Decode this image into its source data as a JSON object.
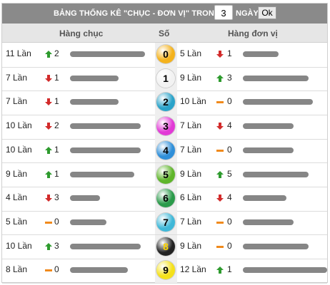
{
  "toolbar": {
    "title": "BẢNG THỐNG KÊ \"CHỤC - ĐƠN VỊ\" TRONG",
    "days_value": "3",
    "days_label": "NGÀY",
    "ok_label": "Ok"
  },
  "header": {
    "chuc": "Hàng chục",
    "so": "Số",
    "donvi": "Hàng đơn vị"
  },
  "colors": {
    "up": "#2e9b2e",
    "down": "#d22b2b",
    "equal": "#f08a1c"
  },
  "rows": [
    {
      "chuc_count": "11 Lần",
      "chuc_trend": "up",
      "chuc_delta": "2",
      "chuc_level": 0.95,
      "digit": "0",
      "ball_color": "#f4b21c",
      "dv_count": "5 Lần",
      "dv_trend": "down",
      "dv_delta": "1",
      "dv_level": 0.42
    },
    {
      "chuc_count": "7 Lần",
      "chuc_trend": "down",
      "chuc_delta": "1",
      "chuc_level": 0.62,
      "digit": "1",
      "ball_color": "#f2f2f2",
      "dv_count": "9 Lần",
      "dv_trend": "up",
      "dv_delta": "3",
      "dv_level": 0.78
    },
    {
      "chuc_count": "7 Lần",
      "chuc_trend": "down",
      "chuc_delta": "1",
      "chuc_level": 0.62,
      "digit": "2",
      "ball_color": "#2aa3c9",
      "dv_count": "10 Lần",
      "dv_trend": "equal",
      "dv_delta": "0",
      "dv_level": 0.83
    },
    {
      "chuc_count": "10 Lần",
      "chuc_trend": "down",
      "chuc_delta": "2",
      "chuc_level": 0.9,
      "digit": "3",
      "ball_color": "#e23ad6",
      "dv_count": "7 Lần",
      "dv_trend": "down",
      "dv_delta": "4",
      "dv_level": 0.6
    },
    {
      "chuc_count": "10 Lần",
      "chuc_trend": "up",
      "chuc_delta": "1",
      "chuc_level": 0.9,
      "digit": "4",
      "ball_color": "#2f8fd9",
      "dv_count": "7 Lần",
      "dv_trend": "equal",
      "dv_delta": "0",
      "dv_level": 0.6
    },
    {
      "chuc_count": "9 Lần",
      "chuc_trend": "up",
      "chuc_delta": "1",
      "chuc_level": 0.82,
      "digit": "5",
      "ball_color": "#5fb52a",
      "dv_count": "9 Lần",
      "dv_trend": "up",
      "dv_delta": "5",
      "dv_level": 0.78
    },
    {
      "chuc_count": "4 Lần",
      "chuc_trend": "down",
      "chuc_delta": "3",
      "chuc_level": 0.38,
      "digit": "6",
      "ball_color": "#2a9a4a",
      "dv_count": "6 Lần",
      "dv_trend": "down",
      "dv_delta": "4",
      "dv_level": 0.52
    },
    {
      "chuc_count": "5 Lần",
      "chuc_trend": "equal",
      "chuc_delta": "0",
      "chuc_level": 0.46,
      "digit": "7",
      "ball_color": "#3fb8d8",
      "dv_count": "7 Lần",
      "dv_trend": "equal",
      "dv_delta": "0",
      "dv_level": 0.6
    },
    {
      "chuc_count": "10 Lần",
      "chuc_trend": "up",
      "chuc_delta": "3",
      "chuc_level": 0.9,
      "digit": "8",
      "ball_color": "#222222",
      "dv_count": "9 Lần",
      "dv_trend": "equal",
      "dv_delta": "0",
      "dv_level": 0.78
    },
    {
      "chuc_count": "8 Lần",
      "chuc_trend": "equal",
      "chuc_delta": "0",
      "chuc_level": 0.74,
      "digit": "9",
      "ball_color": "#f5e11a",
      "dv_count": "12 Lần",
      "dv_trend": "up",
      "dv_delta": "1",
      "dv_level": 1.0
    }
  ]
}
